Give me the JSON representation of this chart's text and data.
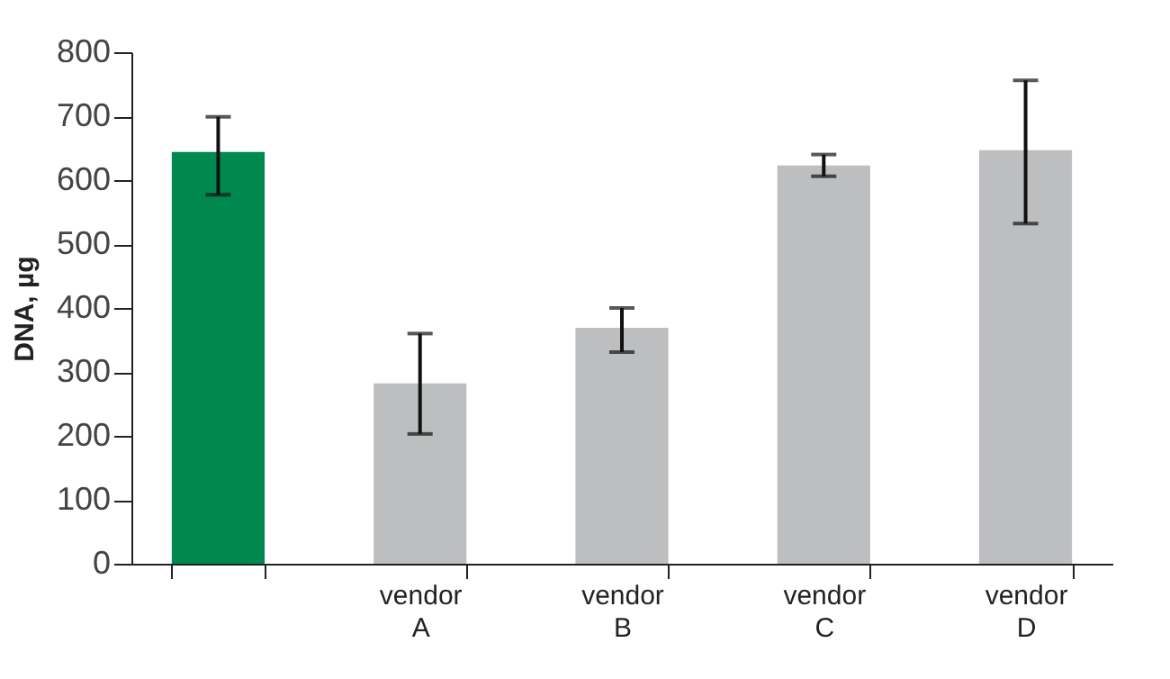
{
  "chart_data": {
    "type": "bar",
    "ylabel": "DNA, µg",
    "categories": [
      null,
      "vendor A",
      "vendor B",
      "vendor C",
      "vendor D"
    ],
    "values": [
      644,
      282,
      369,
      623,
      647
    ],
    "colors": [
      "#00894f",
      "#bdbec0",
      "#bdbec0",
      "#bdbec0",
      "#bdbec0"
    ],
    "errors": [
      [
        577,
        699
      ],
      [
        203,
        360
      ],
      [
        331,
        400
      ],
      [
        606,
        640
      ],
      [
        532,
        756
      ]
    ],
    "ylim": [
      0,
      800
    ],
    "yticks": [
      0,
      100,
      200,
      300,
      400,
      500,
      600,
      700,
      800
    ],
    "grid": false
  }
}
